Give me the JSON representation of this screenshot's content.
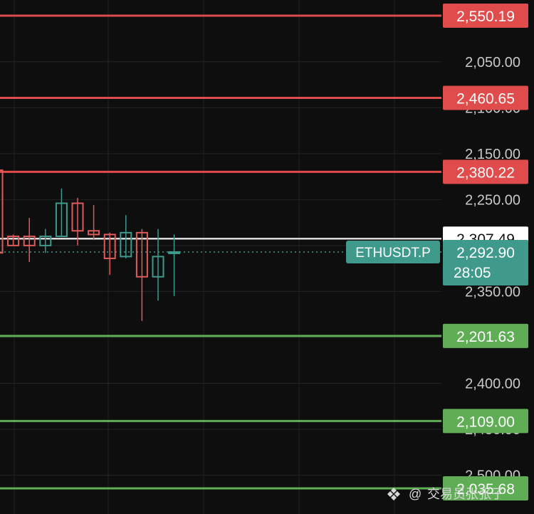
{
  "symbol": "ETHUSDT.P",
  "countdown": "28:05",
  "colors": {
    "background": "#0e0e0e",
    "grid": "#232323",
    "resistance": "#e04b4b",
    "support": "#5fae55",
    "bull": "#3f9a8c",
    "bear": "#e05a5a",
    "last_price": "#3f9a8c",
    "marker_line": "#d9d9d9"
  },
  "watermark": "交易员张张子",
  "watermark_icon": "binance-logo-icon",
  "axis": {
    "tick_labels": [
      "2,500.00",
      "2,450.00",
      "2,400.00",
      "2,350.00",
      "2,250.00",
      "2,150.00",
      "2,100.00",
      "2,050.00"
    ]
  },
  "chart_data": {
    "type": "candlestick",
    "ylim": [
      2020,
      2570
    ],
    "y_ticks": [
      2050,
      2100,
      2150,
      2250,
      2350,
      2400,
      2450,
      2500
    ],
    "candles": [
      {
        "open": 2382,
        "high": 2390,
        "low": 2250,
        "close": 2292,
        "partial": true
      },
      {
        "open": 2310,
        "high": 2312,
        "low": 2300,
        "close": 2300
      },
      {
        "open": 2310,
        "high": 2330,
        "low": 2282,
        "close": 2300
      },
      {
        "open": 2300,
        "high": 2318,
        "low": 2292,
        "close": 2310
      },
      {
        "open": 2310,
        "high": 2362,
        "low": 2310,
        "close": 2346
      },
      {
        "open": 2346,
        "high": 2352,
        "low": 2300,
        "close": 2316
      },
      {
        "open": 2316,
        "high": 2344,
        "low": 2306,
        "close": 2312
      },
      {
        "open": 2312,
        "high": 2314,
        "low": 2268,
        "close": 2286
      },
      {
        "open": 2288,
        "high": 2333,
        "low": 2286,
        "close": 2314
      },
      {
        "open": 2314,
        "high": 2318,
        "low": 2218,
        "close": 2266
      },
      {
        "open": 2266,
        "high": 2318,
        "low": 2240,
        "close": 2288
      },
      {
        "open": 2292,
        "high": 2312,
        "low": 2245,
        "close": 2293
      }
    ],
    "levels": [
      {
        "price": 2550.19,
        "label": "2,550.19",
        "kind": "resistance"
      },
      {
        "price": 2460.65,
        "label": "2,460.65",
        "kind": "resistance"
      },
      {
        "price": 2380.22,
        "label": "2,380.22",
        "kind": "resistance"
      },
      {
        "price": 2201.63,
        "label": "2,201.63",
        "kind": "support"
      },
      {
        "price": 2109.0,
        "label": "2,109.00",
        "kind": "support"
      },
      {
        "price": 2035.68,
        "label": "2,035.68",
        "kind": "support"
      }
    ],
    "marker_line": {
      "price": 2307.49,
      "label": "2,307.49"
    },
    "last_price": {
      "price": 2292.9,
      "label": "2,292.90"
    }
  }
}
